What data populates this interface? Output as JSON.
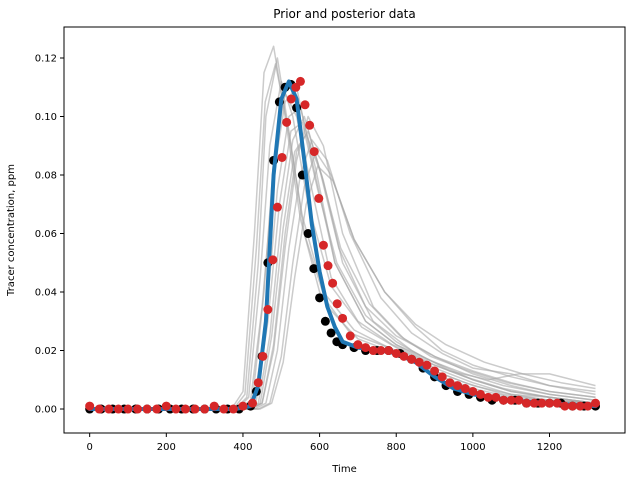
{
  "chart_data": {
    "type": "line",
    "title": "Prior and posterior data",
    "xlabel": "Time",
    "ylabel": "Tracer concentration, ppm",
    "xlim": [
      -67,
      1397
    ],
    "ylim": [
      -0.0082,
      0.1306
    ],
    "x_ticks": [
      0,
      200,
      400,
      600,
      800,
      1000,
      1200
    ],
    "x_tick_labels": [
      "0",
      "200",
      "400",
      "600",
      "800",
      "1000",
      "1200"
    ],
    "y_ticks": [
      0.0,
      0.02,
      0.04,
      0.06,
      0.08,
      0.1,
      0.12
    ],
    "y_tick_labels": [
      "0.00",
      "0.02",
      "0.04",
      "0.06",
      "0.08",
      "0.10",
      "0.12"
    ],
    "grid": false,
    "legend": "none",
    "colors": {
      "true_curve": "#1f77b4",
      "observed_points": "#000000",
      "posterior_points": "#d62728",
      "prior_curves": "#a9a9a9"
    },
    "series": [
      {
        "kind": "line",
        "color": "#1f77b4",
        "x": [
          0,
          380,
          420,
          440,
          460,
          480,
          500,
          520,
          540,
          560,
          580,
          600,
          620,
          640,
          660,
          700,
          760,
          800,
          850,
          900,
          950,
          1000,
          1100,
          1200,
          1320
        ],
        "y": [
          0.0,
          0.0,
          0.001,
          0.008,
          0.03,
          0.08,
          0.106,
          0.112,
          0.106,
          0.085,
          0.063,
          0.047,
          0.035,
          0.028,
          0.023,
          0.021,
          0.02,
          0.019,
          0.016,
          0.011,
          0.007,
          0.005,
          0.003,
          0.002,
          0.001
        ]
      },
      {
        "kind": "scatter",
        "color": "#000000",
        "x": [
          0,
          30,
          60,
          90,
          120,
          150,
          180,
          210,
          240,
          270,
          300,
          330,
          360,
          390,
          420,
          435,
          450,
          465,
          480,
          495,
          510,
          525,
          540,
          555,
          570,
          585,
          600,
          615,
          630,
          645,
          660,
          690,
          720,
          750,
          780,
          810,
          840,
          870,
          900,
          930,
          960,
          990,
          1020,
          1050,
          1080,
          1110,
          1140,
          1170,
          1200,
          1230,
          1260,
          1290,
          1320
        ],
        "y": [
          0.0,
          0.0,
          0.0,
          0.0,
          0.0,
          0.0,
          0.0,
          0.0,
          0.0,
          0.0,
          0.0,
          0.0,
          0.0,
          0.0,
          0.001,
          0.006,
          0.018,
          0.05,
          0.085,
          0.105,
          0.11,
          0.111,
          0.103,
          0.08,
          0.06,
          0.048,
          0.038,
          0.03,
          0.026,
          0.023,
          0.022,
          0.021,
          0.02,
          0.02,
          0.02,
          0.019,
          0.017,
          0.014,
          0.011,
          0.008,
          0.006,
          0.005,
          0.004,
          0.003,
          0.003,
          0.003,
          0.002,
          0.002,
          0.002,
          0.002,
          0.001,
          0.001,
          0.001
        ]
      },
      {
        "kind": "scatter",
        "color": "#d62728",
        "x": [
          0,
          25,
          50,
          75,
          100,
          125,
          150,
          175,
          200,
          225,
          250,
          275,
          300,
          325,
          350,
          375,
          400,
          425,
          440,
          452,
          465,
          478,
          490,
          502,
          514,
          526,
          538,
          550,
          562,
          574,
          586,
          598,
          610,
          622,
          634,
          646,
          660,
          680,
          700,
          720,
          740,
          760,
          780,
          800,
          820,
          840,
          860,
          880,
          900,
          920,
          940,
          960,
          980,
          1000,
          1020,
          1040,
          1060,
          1080,
          1100,
          1120,
          1140,
          1160,
          1180,
          1200,
          1220,
          1240,
          1260,
          1280,
          1300,
          1320
        ],
        "y": [
          0.001,
          0.0,
          0.0,
          0.0,
          0.0,
          0.0,
          0.0,
          0.0,
          0.001,
          0.0,
          0.0,
          0.0,
          0.0,
          0.001,
          0.0,
          0.0,
          0.001,
          0.002,
          0.009,
          0.018,
          0.034,
          0.051,
          0.069,
          0.086,
          0.098,
          0.106,
          0.11,
          0.112,
          0.104,
          0.097,
          0.088,
          0.072,
          0.056,
          0.049,
          0.043,
          0.036,
          0.031,
          0.025,
          0.022,
          0.021,
          0.02,
          0.02,
          0.02,
          0.019,
          0.018,
          0.017,
          0.016,
          0.015,
          0.013,
          0.011,
          0.009,
          0.008,
          0.007,
          0.006,
          0.005,
          0.004,
          0.004,
          0.003,
          0.003,
          0.003,
          0.002,
          0.002,
          0.002,
          0.002,
          0.002,
          0.001,
          0.001,
          0.001,
          0.001,
          0.002
        ]
      },
      {
        "kind": "prior",
        "color": "#a9a9a9",
        "x": [
          0,
          380,
          410,
          440,
          460,
          490,
          520,
          560,
          620,
          700,
          800,
          900,
          1000,
          1100,
          1200,
          1320
        ],
        "y": [
          0,
          0,
          0.004,
          0.05,
          0.1,
          0.12,
          0.095,
          0.06,
          0.035,
          0.024,
          0.019,
          0.012,
          0.007,
          0.004,
          0.003,
          0.002
        ]
      },
      {
        "kind": "prior",
        "color": "#a9a9a9",
        "x": [
          0,
          370,
          400,
          430,
          455,
          480,
          510,
          550,
          600,
          680,
          800,
          900,
          1000,
          1100,
          1200,
          1320
        ],
        "y": [
          0,
          0,
          0.006,
          0.06,
          0.115,
          0.124,
          0.1,
          0.065,
          0.04,
          0.026,
          0.02,
          0.013,
          0.008,
          0.005,
          0.004,
          0.002
        ]
      },
      {
        "kind": "prior",
        "color": "#a9a9a9",
        "x": [
          0,
          390,
          420,
          450,
          480,
          510,
          540,
          580,
          640,
          720,
          800,
          900,
          1000,
          1100,
          1200,
          1320
        ],
        "y": [
          0,
          0,
          0.003,
          0.035,
          0.08,
          0.105,
          0.11,
          0.085,
          0.05,
          0.03,
          0.022,
          0.015,
          0.01,
          0.006,
          0.004,
          0.002
        ]
      },
      {
        "kind": "prior",
        "color": "#a9a9a9",
        "x": [
          0,
          400,
          430,
          460,
          490,
          520,
          550,
          590,
          640,
          720,
          800,
          900,
          1000,
          1100,
          1200,
          1320
        ],
        "y": [
          0,
          0,
          0.003,
          0.03,
          0.075,
          0.1,
          0.103,
          0.082,
          0.05,
          0.03,
          0.022,
          0.016,
          0.01,
          0.006,
          0.004,
          0.002
        ]
      },
      {
        "kind": "prior",
        "color": "#a9a9a9",
        "x": [
          0,
          410,
          440,
          470,
          500,
          530,
          560,
          600,
          650,
          720,
          800,
          900,
          1000,
          1100,
          1200,
          1320
        ],
        "y": [
          0,
          0,
          0.002,
          0.025,
          0.065,
          0.092,
          0.1,
          0.082,
          0.055,
          0.035,
          0.025,
          0.018,
          0.012,
          0.008,
          0.005,
          0.003
        ]
      },
      {
        "kind": "prior",
        "color": "#a9a9a9",
        "x": [
          0,
          420,
          450,
          480,
          510,
          540,
          570,
          610,
          660,
          740,
          820,
          900,
          1000,
          1100,
          1200,
          1320
        ],
        "y": [
          0,
          0,
          0.002,
          0.02,
          0.055,
          0.085,
          0.1,
          0.09,
          0.06,
          0.035,
          0.024,
          0.018,
          0.013,
          0.009,
          0.006,
          0.004
        ]
      },
      {
        "kind": "prior",
        "color": "#a9a9a9",
        "x": [
          0,
          430,
          460,
          490,
          520,
          550,
          580,
          620,
          680,
          760,
          840,
          920,
          1000,
          1100,
          1200,
          1320
        ],
        "y": [
          0,
          0,
          0.002,
          0.02,
          0.055,
          0.08,
          0.092,
          0.085,
          0.06,
          0.038,
          0.026,
          0.019,
          0.014,
          0.012,
          0.008,
          0.005
        ]
      },
      {
        "kind": "prior",
        "color": "#a9a9a9",
        "x": [
          0,
          440,
          470,
          500,
          530,
          560,
          590,
          630,
          690,
          770,
          850,
          920,
          1000,
          1100,
          1200,
          1320
        ],
        "y": [
          0,
          0,
          0.002,
          0.018,
          0.05,
          0.076,
          0.088,
          0.08,
          0.058,
          0.04,
          0.028,
          0.02,
          0.015,
          0.011,
          0.008,
          0.006
        ]
      },
      {
        "kind": "prior",
        "color": "#a9a9a9",
        "x": [
          0,
          420,
          450,
          480,
          510,
          540,
          570,
          610,
          660,
          740,
          840,
          940,
          1040,
          1120,
          1200,
          1320
        ],
        "y": [
          0,
          0,
          0.002,
          0.022,
          0.06,
          0.088,
          0.095,
          0.078,
          0.05,
          0.03,
          0.02,
          0.013,
          0.01,
          0.012,
          0.012,
          0.008
        ]
      },
      {
        "kind": "prior",
        "color": "#a9a9a9",
        "x": [
          0,
          385,
          415,
          445,
          470,
          500,
          530,
          570,
          630,
          710,
          800,
          900,
          1000,
          1100,
          1200,
          1320
        ],
        "y": [
          0,
          0,
          0.004,
          0.045,
          0.09,
          0.112,
          0.1,
          0.07,
          0.042,
          0.028,
          0.021,
          0.014,
          0.009,
          0.005,
          0.003,
          0.002
        ]
      },
      {
        "kind": "prior",
        "color": "#a9a9a9",
        "x": [
          0,
          395,
          425,
          455,
          480,
          510,
          540,
          580,
          630,
          700,
          790,
          880,
          980,
          1080,
          1200,
          1320
        ],
        "y": [
          0,
          0,
          0.003,
          0.04,
          0.085,
          0.108,
          0.1,
          0.075,
          0.045,
          0.03,
          0.022,
          0.016,
          0.011,
          0.007,
          0.004,
          0.002
        ]
      },
      {
        "kind": "prior",
        "color": "#a9a9a9",
        "x": [
          0,
          405,
          435,
          465,
          495,
          525,
          555,
          595,
          645,
          720,
          800,
          880,
          980,
          1080,
          1200,
          1320
        ],
        "y": [
          0,
          0,
          0.003,
          0.03,
          0.07,
          0.095,
          0.098,
          0.075,
          0.05,
          0.032,
          0.023,
          0.017,
          0.012,
          0.008,
          0.005,
          0.003
        ]
      },
      {
        "kind": "prior",
        "color": "#a9a9a9",
        "x": [
          0,
          415,
          445,
          475,
          505,
          535,
          565,
          605,
          655,
          730,
          810,
          890,
          990,
          1090,
          1200,
          1320
        ],
        "y": [
          0,
          0,
          0.002,
          0.025,
          0.062,
          0.088,
          0.094,
          0.08,
          0.055,
          0.036,
          0.025,
          0.018,
          0.013,
          0.009,
          0.006,
          0.004
        ]
      },
      {
        "kind": "prior",
        "color": "#a9a9a9",
        "x": [
          0,
          375,
          405,
          435,
          458,
          485,
          515,
          555,
          610,
          690,
          780,
          880,
          980,
          1080,
          1200,
          1320
        ],
        "y": [
          0,
          0,
          0.005,
          0.055,
          0.105,
          0.118,
          0.098,
          0.066,
          0.04,
          0.027,
          0.021,
          0.014,
          0.009,
          0.005,
          0.003,
          0.002
        ]
      },
      {
        "kind": "prior",
        "color": "#a9a9a9",
        "x": [
          0,
          445,
          475,
          505,
          535,
          565,
          595,
          635,
          690,
          770,
          850,
          930,
          1030,
          1130,
          1230,
          1320
        ],
        "y": [
          0,
          0,
          0.002,
          0.016,
          0.045,
          0.07,
          0.083,
          0.078,
          0.058,
          0.04,
          0.029,
          0.022,
          0.016,
          0.012,
          0.009,
          0.007
        ]
      }
    ]
  }
}
